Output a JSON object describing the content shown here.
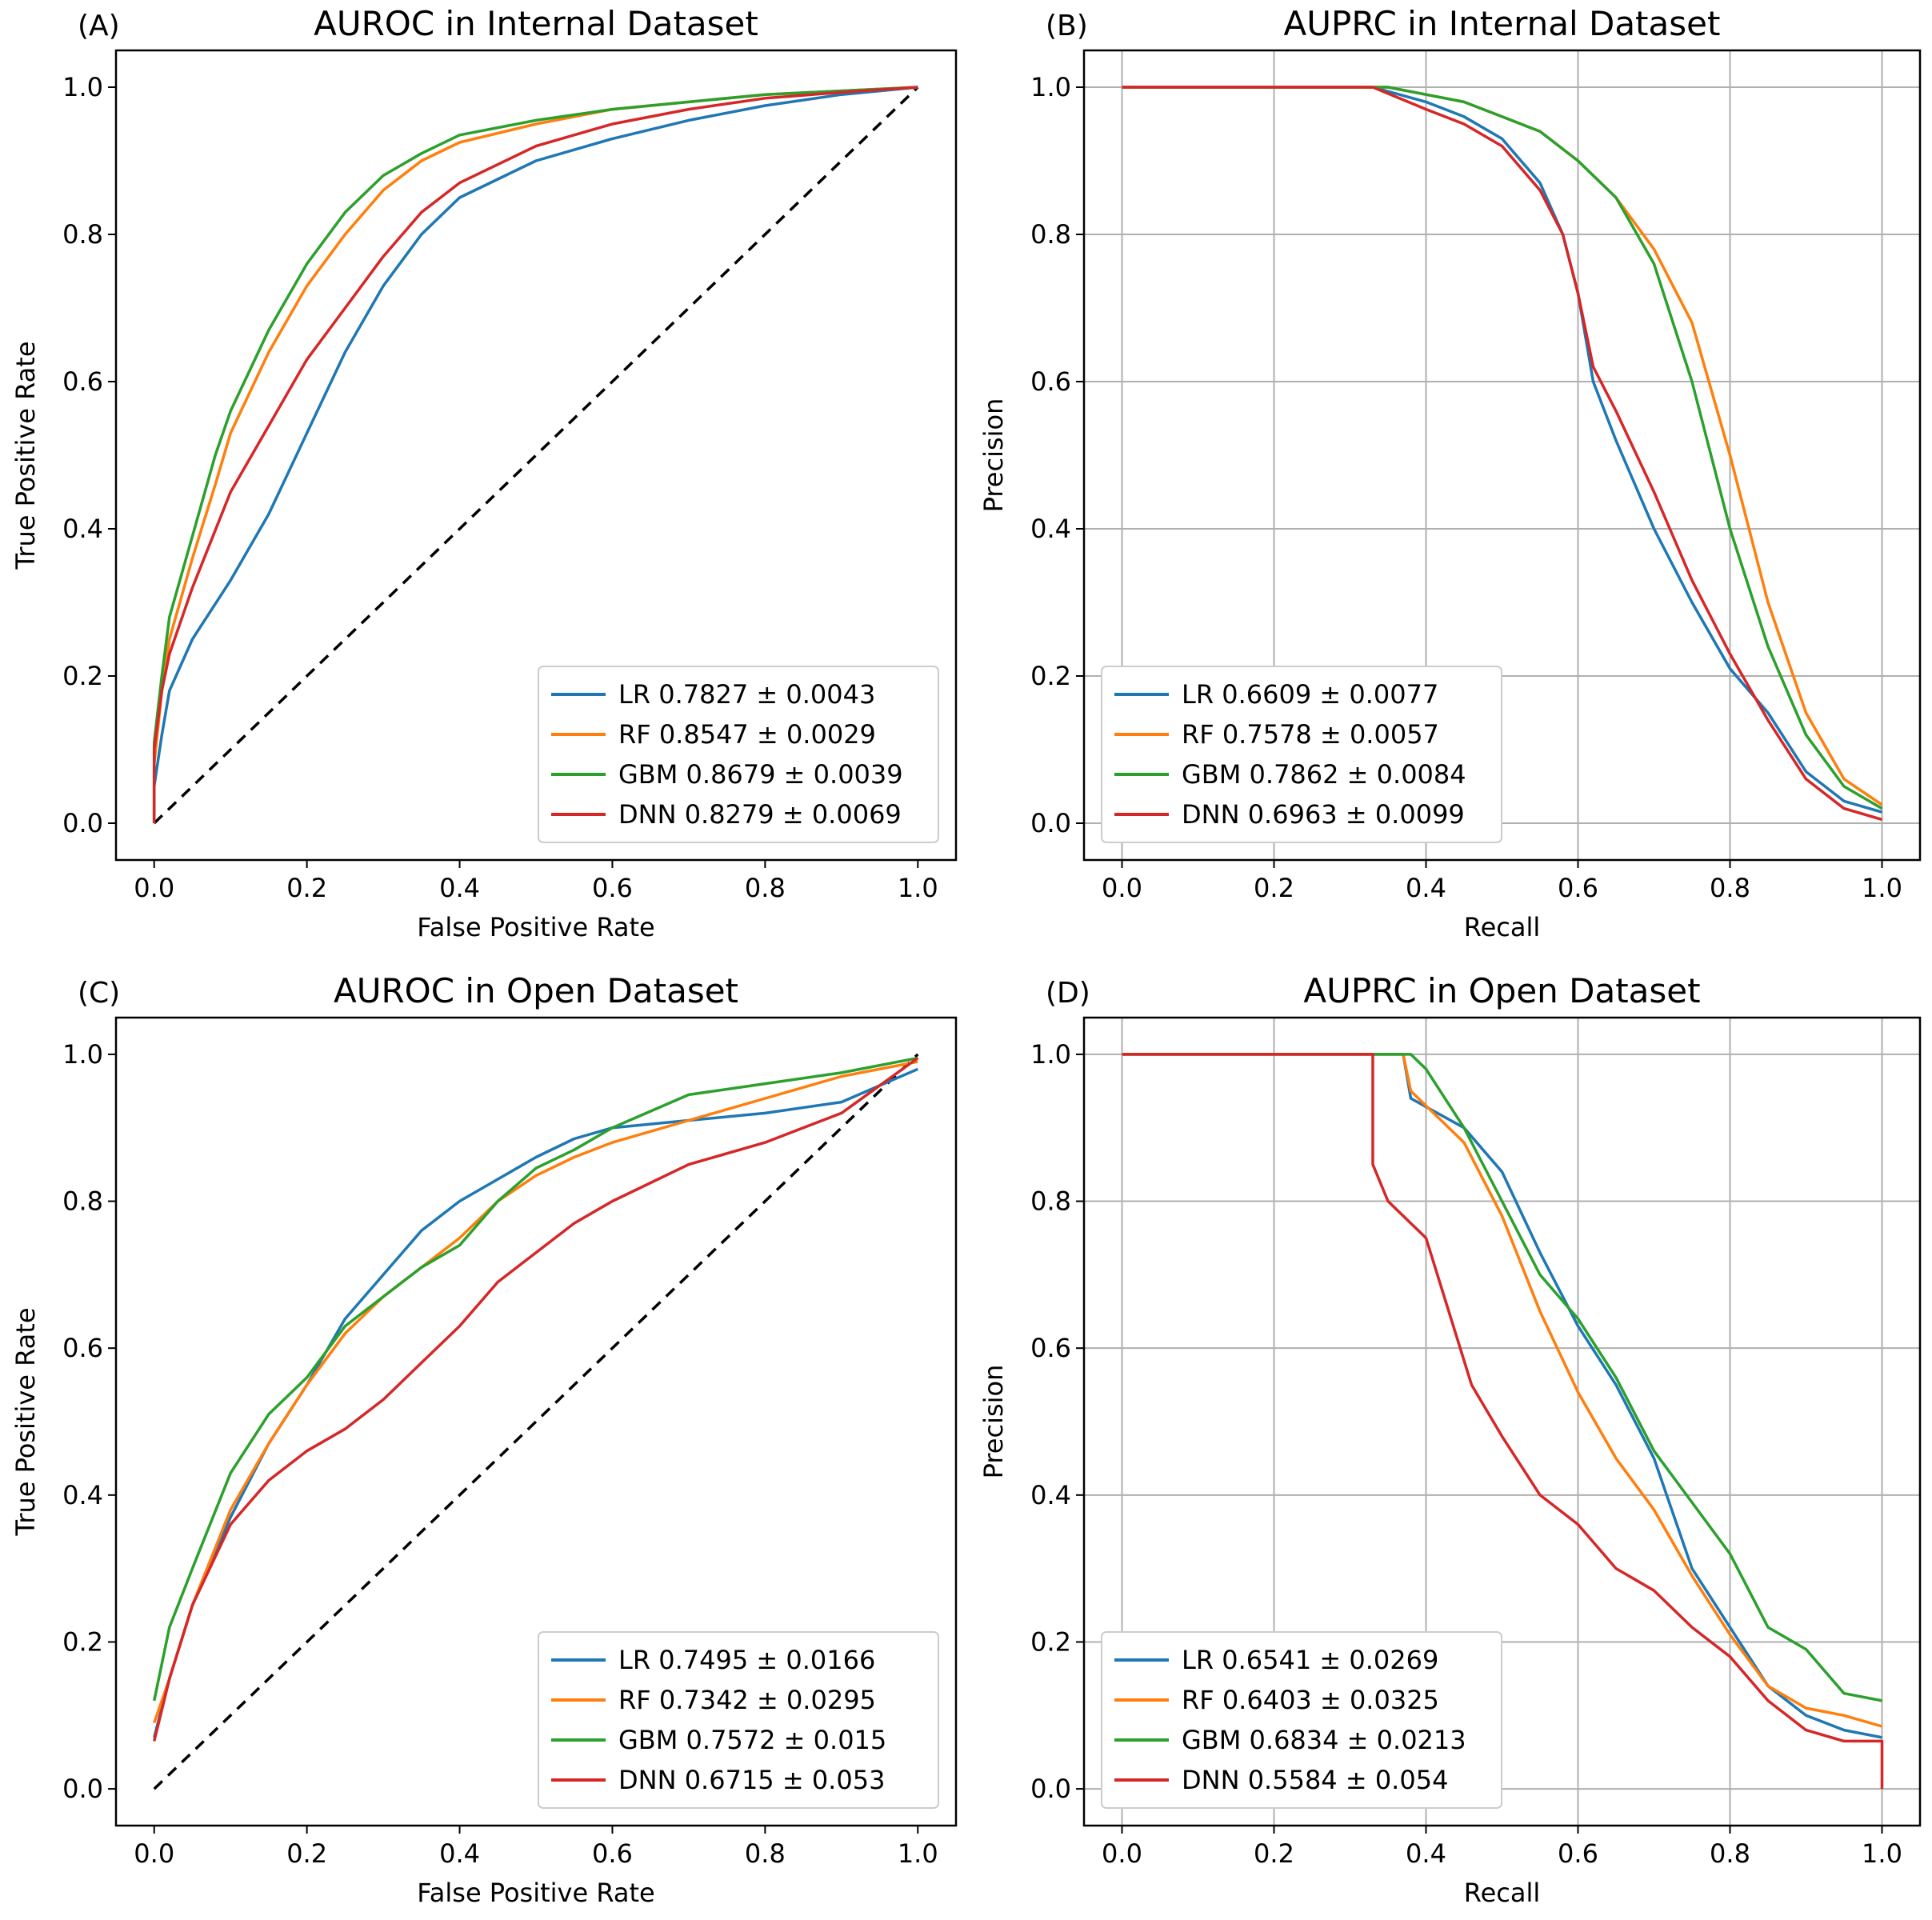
{
  "colors": {
    "LR": "#1f77b4",
    "RF": "#ff7f0e",
    "GBM": "#2ca02c",
    "DNN": "#d62728"
  },
  "chart_data": [
    {
      "panel": "(A)",
      "type": "line",
      "title": "AUROC in Internal Dataset",
      "xlabel": "False Positive Rate",
      "ylabel": "True Positive Rate",
      "xlim": [
        0,
        1
      ],
      "ylim": [
        0,
        1
      ],
      "xticks": [
        0,
        0.2,
        0.4,
        0.6,
        0.8,
        1.0
      ],
      "yticks": [
        0,
        0.2,
        0.4,
        0.6,
        0.8,
        1.0
      ],
      "xtick_labels": [
        "0.0",
        "0.2",
        "0.4",
        "0.6",
        "0.8",
        "1.0"
      ],
      "ytick_labels": [
        "0.0",
        "0.2",
        "0.4",
        "0.6",
        "0.8",
        "1.0"
      ],
      "grid": false,
      "diagonal": true,
      "legend_position": "lower-right",
      "series": [
        {
          "name": "LR",
          "label": "LR 0.7827 ± 0.0043",
          "x": [
            0,
            0,
            0.01,
            0.02,
            0.05,
            0.1,
            0.15,
            0.2,
            0.25,
            0.3,
            0.35,
            0.4,
            0.5,
            0.6,
            0.7,
            0.8,
            0.9,
            1.0
          ],
          "y": [
            0,
            0.05,
            0.12,
            0.18,
            0.25,
            0.33,
            0.42,
            0.53,
            0.64,
            0.73,
            0.8,
            0.85,
            0.9,
            0.93,
            0.955,
            0.975,
            0.99,
            1.0
          ]
        },
        {
          "name": "RF",
          "label": "RF 0.8547 ± 0.0029",
          "x": [
            0,
            0,
            0.01,
            0.02,
            0.05,
            0.08,
            0.1,
            0.15,
            0.2,
            0.25,
            0.3,
            0.35,
            0.4,
            0.5,
            0.6,
            0.7,
            0.8,
            0.9,
            1.0
          ],
          "y": [
            0,
            0.08,
            0.18,
            0.25,
            0.36,
            0.46,
            0.53,
            0.64,
            0.73,
            0.8,
            0.86,
            0.9,
            0.925,
            0.95,
            0.97,
            0.98,
            0.99,
            0.995,
            1.0
          ]
        },
        {
          "name": "GBM",
          "label": "GBM 0.8679 ± 0.0039",
          "x": [
            0,
            0,
            0.01,
            0.02,
            0.05,
            0.08,
            0.1,
            0.15,
            0.2,
            0.25,
            0.3,
            0.35,
            0.4,
            0.5,
            0.6,
            0.7,
            0.8,
            0.9,
            1.0
          ],
          "y": [
            0,
            0.11,
            0.2,
            0.28,
            0.39,
            0.5,
            0.56,
            0.67,
            0.76,
            0.83,
            0.88,
            0.91,
            0.935,
            0.955,
            0.97,
            0.98,
            0.99,
            0.995,
            1.0
          ]
        },
        {
          "name": "DNN",
          "label": "DNN 0.8279 ± 0.0069",
          "x": [
            0,
            0,
            0.01,
            0.02,
            0.05,
            0.1,
            0.15,
            0.2,
            0.25,
            0.3,
            0.35,
            0.4,
            0.5,
            0.6,
            0.7,
            0.8,
            0.9,
            1.0
          ],
          "y": [
            0,
            0.1,
            0.18,
            0.23,
            0.32,
            0.45,
            0.54,
            0.63,
            0.7,
            0.77,
            0.83,
            0.87,
            0.92,
            0.95,
            0.97,
            0.985,
            0.993,
            1.0
          ]
        }
      ]
    },
    {
      "panel": "(B)",
      "type": "line",
      "title": "AUPRC in Internal Dataset",
      "xlabel": "Recall",
      "ylabel": "Precision",
      "xlim": [
        0,
        1
      ],
      "ylim": [
        0,
        1
      ],
      "xticks": [
        0,
        0.2,
        0.4,
        0.6,
        0.8,
        1.0
      ],
      "yticks": [
        0,
        0.2,
        0.4,
        0.6,
        0.8,
        1.0
      ],
      "xtick_labels": [
        "0.0",
        "0.2",
        "0.4",
        "0.6",
        "0.8",
        "1.0"
      ],
      "ytick_labels": [
        "0.0",
        "0.2",
        "0.4",
        "0.6",
        "0.8",
        "1.0"
      ],
      "grid": true,
      "diagonal": false,
      "legend_position": "lower-left",
      "series": [
        {
          "name": "LR",
          "label": "LR 0.6609 ± 0.0077",
          "x": [
            0,
            0.33,
            0.4,
            0.45,
            0.5,
            0.55,
            0.58,
            0.6,
            0.62,
            0.65,
            0.7,
            0.75,
            0.8,
            0.85,
            0.9,
            0.95,
            1.0
          ],
          "y": [
            1.0,
            1.0,
            0.98,
            0.96,
            0.93,
            0.87,
            0.8,
            0.72,
            0.6,
            0.52,
            0.4,
            0.3,
            0.21,
            0.15,
            0.07,
            0.03,
            0.015
          ]
        },
        {
          "name": "RF",
          "label": "RF 0.7578 ± 0.0057",
          "x": [
            0,
            0.35,
            0.4,
            0.45,
            0.5,
            0.55,
            0.6,
            0.65,
            0.7,
            0.75,
            0.8,
            0.85,
            0.9,
            0.95,
            1.0
          ],
          "y": [
            1.0,
            1.0,
            0.99,
            0.98,
            0.96,
            0.94,
            0.9,
            0.85,
            0.78,
            0.68,
            0.5,
            0.3,
            0.15,
            0.06,
            0.025
          ]
        },
        {
          "name": "GBM",
          "label": "GBM 0.7862 ± 0.0084",
          "x": [
            0,
            0.35,
            0.4,
            0.45,
            0.5,
            0.55,
            0.6,
            0.65,
            0.7,
            0.75,
            0.8,
            0.85,
            0.9,
            0.95,
            1.0
          ],
          "y": [
            1.0,
            1.0,
            0.99,
            0.98,
            0.96,
            0.94,
            0.9,
            0.85,
            0.76,
            0.6,
            0.4,
            0.24,
            0.12,
            0.05,
            0.02
          ]
        },
        {
          "name": "DNN",
          "label": "DNN 0.6963 ± 0.0099",
          "x": [
            0,
            0.33,
            0.4,
            0.45,
            0.5,
            0.55,
            0.58,
            0.6,
            0.62,
            0.65,
            0.7,
            0.75,
            0.8,
            0.85,
            0.9,
            0.95,
            1.0
          ],
          "y": [
            1.0,
            1.0,
            0.97,
            0.95,
            0.92,
            0.86,
            0.8,
            0.72,
            0.62,
            0.56,
            0.45,
            0.33,
            0.23,
            0.14,
            0.06,
            0.02,
            0.005
          ]
        }
      ]
    },
    {
      "panel": "(C)",
      "type": "line",
      "title": "AUROC in Open Dataset",
      "xlabel": "False Positive Rate",
      "ylabel": "True Positive Rate",
      "xlim": [
        0,
        1
      ],
      "ylim": [
        0,
        1
      ],
      "xticks": [
        0,
        0.2,
        0.4,
        0.6,
        0.8,
        1.0
      ],
      "yticks": [
        0,
        0.2,
        0.4,
        0.6,
        0.8,
        1.0
      ],
      "xtick_labels": [
        "0.0",
        "0.2",
        "0.4",
        "0.6",
        "0.8",
        "1.0"
      ],
      "ytick_labels": [
        "0.0",
        "0.2",
        "0.4",
        "0.6",
        "0.8",
        "1.0"
      ],
      "grid": false,
      "diagonal": true,
      "legend_position": "lower-right",
      "series": [
        {
          "name": "LR",
          "label": "LR 0.7495 ± 0.0166",
          "x": [
            0,
            0.02,
            0.05,
            0.1,
            0.15,
            0.2,
            0.25,
            0.3,
            0.35,
            0.4,
            0.45,
            0.5,
            0.55,
            0.6,
            0.7,
            0.8,
            0.9,
            1.0
          ],
          "y": [
            0.07,
            0.15,
            0.25,
            0.37,
            0.47,
            0.55,
            0.64,
            0.7,
            0.76,
            0.8,
            0.83,
            0.86,
            0.885,
            0.9,
            0.91,
            0.92,
            0.935,
            0.98
          ]
        },
        {
          "name": "RF",
          "label": "RF 0.7342 ± 0.0295",
          "x": [
            0,
            0.02,
            0.05,
            0.1,
            0.15,
            0.2,
            0.25,
            0.3,
            0.35,
            0.4,
            0.45,
            0.5,
            0.55,
            0.6,
            0.7,
            0.8,
            0.9,
            1.0
          ],
          "y": [
            0.09,
            0.15,
            0.25,
            0.38,
            0.47,
            0.55,
            0.62,
            0.67,
            0.71,
            0.75,
            0.8,
            0.835,
            0.86,
            0.88,
            0.91,
            0.94,
            0.97,
            0.99
          ]
        },
        {
          "name": "GBM",
          "label": "GBM 0.7572 ± 0.015",
          "x": [
            0,
            0.02,
            0.05,
            0.1,
            0.15,
            0.2,
            0.25,
            0.3,
            0.35,
            0.4,
            0.45,
            0.5,
            0.55,
            0.6,
            0.7,
            0.8,
            0.9,
            1.0
          ],
          "y": [
            0.12,
            0.22,
            0.3,
            0.43,
            0.51,
            0.56,
            0.63,
            0.67,
            0.71,
            0.74,
            0.8,
            0.845,
            0.87,
            0.9,
            0.945,
            0.96,
            0.975,
            0.995
          ]
        },
        {
          "name": "DNN",
          "label": "DNN 0.6715 ± 0.053",
          "x": [
            0,
            0.02,
            0.05,
            0.1,
            0.15,
            0.2,
            0.25,
            0.3,
            0.35,
            0.4,
            0.45,
            0.5,
            0.55,
            0.6,
            0.7,
            0.8,
            0.9,
            1.0
          ],
          "y": [
            0.065,
            0.15,
            0.25,
            0.36,
            0.42,
            0.46,
            0.49,
            0.53,
            0.58,
            0.63,
            0.69,
            0.73,
            0.77,
            0.8,
            0.85,
            0.88,
            0.92,
            0.995
          ]
        }
      ]
    },
    {
      "panel": "(D)",
      "type": "line",
      "title": "AUPRC in Open Dataset",
      "xlabel": "Recall",
      "ylabel": "Precision",
      "xlim": [
        0,
        1
      ],
      "ylim": [
        0,
        1
      ],
      "xticks": [
        0,
        0.2,
        0.4,
        0.6,
        0.8,
        1.0
      ],
      "yticks": [
        0,
        0.2,
        0.4,
        0.6,
        0.8,
        1.0
      ],
      "xtick_labels": [
        "0.0",
        "0.2",
        "0.4",
        "0.6",
        "0.8",
        "1.0"
      ],
      "ytick_labels": [
        "0.0",
        "0.2",
        "0.4",
        "0.6",
        "0.8",
        "1.0"
      ],
      "grid": true,
      "diagonal": false,
      "legend_position": "lower-left",
      "series": [
        {
          "name": "LR",
          "label": "LR 0.6541 ± 0.0269",
          "x": [
            0,
            0.33,
            0.37,
            0.38,
            0.45,
            0.5,
            0.55,
            0.6,
            0.65,
            0.7,
            0.75,
            0.8,
            0.85,
            0.9,
            0.95,
            1.0
          ],
          "y": [
            1.0,
            1.0,
            1.0,
            0.94,
            0.9,
            0.84,
            0.73,
            0.63,
            0.55,
            0.45,
            0.3,
            0.22,
            0.14,
            0.1,
            0.08,
            0.07
          ]
        },
        {
          "name": "RF",
          "label": "RF 0.6403 ± 0.0325",
          "x": [
            0,
            0.33,
            0.37,
            0.38,
            0.45,
            0.5,
            0.55,
            0.6,
            0.65,
            0.7,
            0.75,
            0.8,
            0.85,
            0.9,
            0.95,
            1.0
          ],
          "y": [
            1.0,
            1.0,
            1.0,
            0.95,
            0.88,
            0.78,
            0.65,
            0.54,
            0.45,
            0.38,
            0.29,
            0.21,
            0.14,
            0.11,
            0.1,
            0.085
          ]
        },
        {
          "name": "GBM",
          "label": "GBM 0.6834 ± 0.0213",
          "x": [
            0,
            0.33,
            0.38,
            0.4,
            0.45,
            0.5,
            0.55,
            0.6,
            0.65,
            0.7,
            0.75,
            0.8,
            0.85,
            0.9,
            0.95,
            1.0
          ],
          "y": [
            1.0,
            1.0,
            1.0,
            0.98,
            0.9,
            0.8,
            0.7,
            0.64,
            0.56,
            0.46,
            0.39,
            0.32,
            0.22,
            0.19,
            0.13,
            0.12
          ]
        },
        {
          "name": "DNN",
          "label": "DNN 0.5584 ± 0.054",
          "x": [
            0,
            0.33,
            0.33,
            0.35,
            0.4,
            0.43,
            0.46,
            0.5,
            0.55,
            0.6,
            0.65,
            0.7,
            0.75,
            0.8,
            0.85,
            0.9,
            0.95,
            1.0,
            1.0
          ],
          "y": [
            1.0,
            1.0,
            0.85,
            0.8,
            0.75,
            0.65,
            0.55,
            0.48,
            0.4,
            0.36,
            0.3,
            0.27,
            0.22,
            0.18,
            0.12,
            0.08,
            0.065,
            0.065,
            0.0
          ]
        }
      ]
    }
  ]
}
